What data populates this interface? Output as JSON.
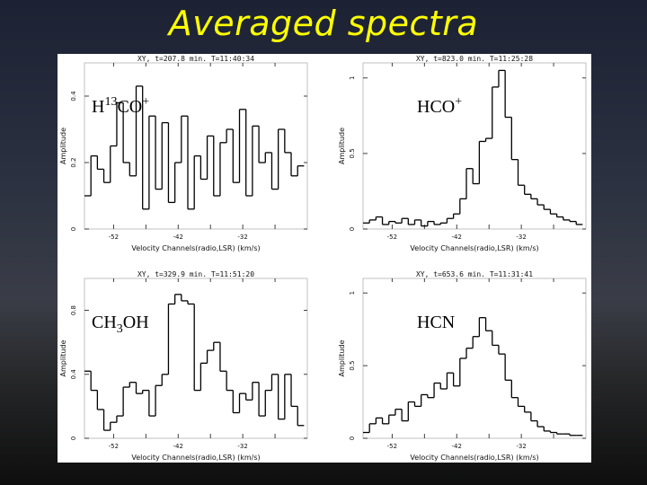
{
  "slide": {
    "title": "Averaged spectra"
  },
  "colors": {
    "title": "#ffff00",
    "plot_line": "#000000",
    "figure_bg": "#ffffff"
  },
  "chart_data": [
    {
      "type": "line",
      "step": true,
      "header": "XY, t=207.8 min. T=11:40:34",
      "molecule_main": "H",
      "molecule_sup": "13",
      "molecule_rest": "CO",
      "molecule_charge": "+",
      "xlabel": "Velocity Channels(radio,LSR) (km/s)",
      "ylabel": "Amplitude",
      "xlim": [
        -56.5,
        -22
      ],
      "ylim": [
        0,
        0.5
      ],
      "xticks": [
        -52,
        -47,
        -42,
        -37,
        -32,
        -27
      ],
      "xtick_labels": [
        "-52",
        "",
        "-42",
        "",
        "-32",
        ""
      ],
      "yticks": [
        0,
        0.2,
        0.4
      ],
      "ytick_labels": [
        "0",
        "0.2",
        "0.4"
      ],
      "x": [
        -56,
        -55,
        -54,
        -53,
        -52,
        -51,
        -50,
        -49,
        -48,
        -47,
        -46,
        -45,
        -44,
        -43,
        -42,
        -41,
        -40,
        -39,
        -38,
        -37,
        -36,
        -35,
        -34,
        -33,
        -32,
        -31,
        -30,
        -29,
        -28,
        -27,
        -26,
        -25,
        -24,
        -23
      ],
      "values": [
        0.1,
        0.22,
        0.18,
        0.14,
        0.25,
        0.38,
        0.2,
        0.16,
        0.43,
        0.06,
        0.34,
        0.12,
        0.32,
        0.08,
        0.2,
        0.34,
        0.06,
        0.22,
        0.15,
        0.28,
        0.1,
        0.26,
        0.3,
        0.14,
        0.36,
        0.1,
        0.31,
        0.2,
        0.23,
        0.12,
        0.3,
        0.23,
        0.16,
        0.19
      ]
    },
    {
      "type": "line",
      "step": true,
      "header": "XY, t=823.0 min. T=11:25:28",
      "molecule_main": "HCO",
      "molecule_sup": "",
      "molecule_rest": "",
      "molecule_charge": "+",
      "xlabel": "Velocity Channels(radio,LSR) (km/s)",
      "ylabel": "Amplitude",
      "xlim": [
        -56.5,
        -22
      ],
      "ylim": [
        0,
        1.1
      ],
      "xticks": [
        -52,
        -47,
        -42,
        -37,
        -32,
        -27
      ],
      "xtick_labels": [
        "-52",
        "",
        "-42",
        "",
        "-32",
        ""
      ],
      "yticks": [
        0,
        0.5,
        1
      ],
      "ytick_labels": [
        "0",
        "0.5",
        "1"
      ],
      "x": [
        -56,
        -55,
        -54,
        -53,
        -52,
        -51,
        -50,
        -49,
        -48,
        -47,
        -46,
        -45,
        -44,
        -43,
        -42,
        -41,
        -40,
        -39,
        -38,
        -37,
        -36,
        -35,
        -34,
        -33,
        -32,
        -31,
        -30,
        -29,
        -28,
        -27,
        -26,
        -25,
        -24,
        -23
      ],
      "values": [
        0.04,
        0.06,
        0.08,
        0.03,
        0.05,
        0.04,
        0.07,
        0.03,
        0.06,
        0.02,
        0.05,
        0.03,
        0.04,
        0.07,
        0.1,
        0.2,
        0.4,
        0.3,
        0.58,
        0.6,
        0.94,
        1.05,
        0.74,
        0.46,
        0.29,
        0.23,
        0.2,
        0.16,
        0.13,
        0.1,
        0.08,
        0.06,
        0.05,
        0.03
      ]
    },
    {
      "type": "line",
      "step": true,
      "header": "XY, t=329.9 min. T=11:51:20",
      "molecule_main": "CH",
      "molecule_sup": "",
      "molecule_rest": "OH",
      "molecule_sub": "3",
      "molecule_charge": "",
      "xlabel": "Velocity Channels(radio,LSR) (km/s)",
      "ylabel": "Amplitude",
      "xlim": [
        -56.5,
        -22
      ],
      "ylim": [
        0,
        1.0
      ],
      "xticks": [
        -52,
        -47,
        -42,
        -37,
        -32,
        -27
      ],
      "xtick_labels": [
        "-52",
        "",
        "-42",
        "",
        "-32",
        ""
      ],
      "yticks": [
        0,
        0.4,
        0.8
      ],
      "ytick_labels": [
        "0",
        "0.4",
        "0.8"
      ],
      "x": [
        -56,
        -55,
        -54,
        -53,
        -52,
        -51,
        -50,
        -49,
        -48,
        -47,
        -46,
        -45,
        -44,
        -43,
        -42,
        -41,
        -40,
        -39,
        -38,
        -37,
        -36,
        -35,
        -34,
        -33,
        -32,
        -31,
        -30,
        -29,
        -28,
        -27,
        -26,
        -25,
        -24,
        -23
      ],
      "values": [
        0.42,
        0.3,
        0.18,
        0.05,
        0.1,
        0.14,
        0.32,
        0.35,
        0.28,
        0.3,
        0.14,
        0.33,
        0.4,
        0.84,
        0.9,
        0.86,
        0.84,
        0.3,
        0.47,
        0.55,
        0.6,
        0.42,
        0.3,
        0.16,
        0.28,
        0.24,
        0.35,
        0.14,
        0.3,
        0.4,
        0.12,
        0.4,
        0.2,
        0.08
      ]
    },
    {
      "type": "line",
      "step": true,
      "header": "XY, t=653.6 min. T=11:31:41",
      "molecule_main": "HCN",
      "molecule_sup": "",
      "molecule_rest": "",
      "molecule_charge": "",
      "xlabel": "Velocity Channels(radio,LSR) (km/s)",
      "ylabel": "Amplitude",
      "xlim": [
        -56.5,
        -22
      ],
      "ylim": [
        0,
        1.1
      ],
      "xticks": [
        -52,
        -47,
        -42,
        -37,
        -32,
        -27
      ],
      "xtick_labels": [
        "-52",
        "",
        "-42",
        "",
        "-32",
        ""
      ],
      "yticks": [
        0,
        0.5,
        1
      ],
      "ytick_labels": [
        "0",
        "0.5",
        "1"
      ],
      "x": [
        -56,
        -55,
        -54,
        -53,
        -52,
        -51,
        -50,
        -49,
        -48,
        -47,
        -46,
        -45,
        -44,
        -43,
        -42,
        -41,
        -40,
        -39,
        -38,
        -37,
        -36,
        -35,
        -34,
        -33,
        -32,
        -31,
        -30,
        -29,
        -28,
        -27,
        -26,
        -25,
        -24,
        -23
      ],
      "values": [
        0.04,
        0.1,
        0.14,
        0.1,
        0.16,
        0.2,
        0.12,
        0.25,
        0.22,
        0.3,
        0.28,
        0.38,
        0.34,
        0.45,
        0.36,
        0.55,
        0.62,
        0.7,
        0.83,
        0.74,
        0.64,
        0.58,
        0.4,
        0.28,
        0.22,
        0.18,
        0.12,
        0.08,
        0.05,
        0.04,
        0.03,
        0.03,
        0.02,
        0.02
      ]
    }
  ]
}
